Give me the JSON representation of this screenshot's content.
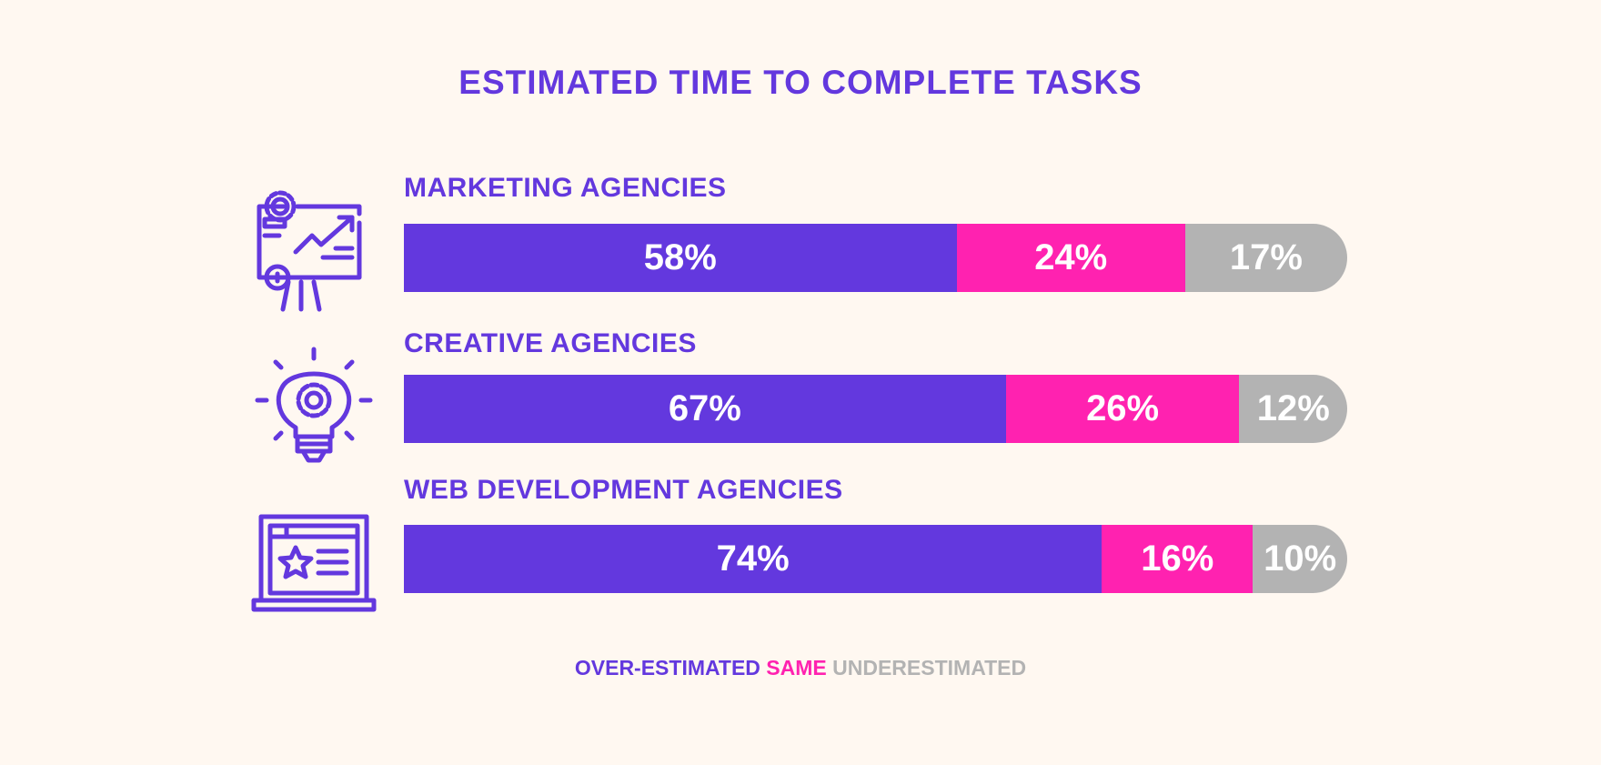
{
  "colors": {
    "over": "#6338de",
    "same": "#ff22b0",
    "under": "#b3b3b3",
    "background": "#fff8f1"
  },
  "chart_data": {
    "type": "bar",
    "orientation": "horizontal-stacked",
    "title": "ESTIMATED TIME TO COMPLETE TASKS",
    "categories": [
      "MARKETING AGENCIES",
      "CREATIVE AGENCIES",
      "WEB DEVELOPMENT AGENCIES"
    ],
    "icons": [
      "presentation-chart-icon",
      "lightbulb-gear-icon",
      "laptop-star-icon"
    ],
    "series": [
      {
        "name": "OVER-ESTIMATED",
        "values": [
          58,
          67,
          74
        ],
        "labels": [
          "58%",
          "67%",
          "74%"
        ]
      },
      {
        "name": "SAME",
        "values": [
          24,
          26,
          16
        ],
        "labels": [
          "24%",
          "26%",
          "16%"
        ]
      },
      {
        "name": "UNDERESTIMATED",
        "values": [
          17,
          12,
          10
        ],
        "labels": [
          "17%",
          "12%",
          "10%"
        ]
      }
    ],
    "legend_position": "bottom-center"
  }
}
